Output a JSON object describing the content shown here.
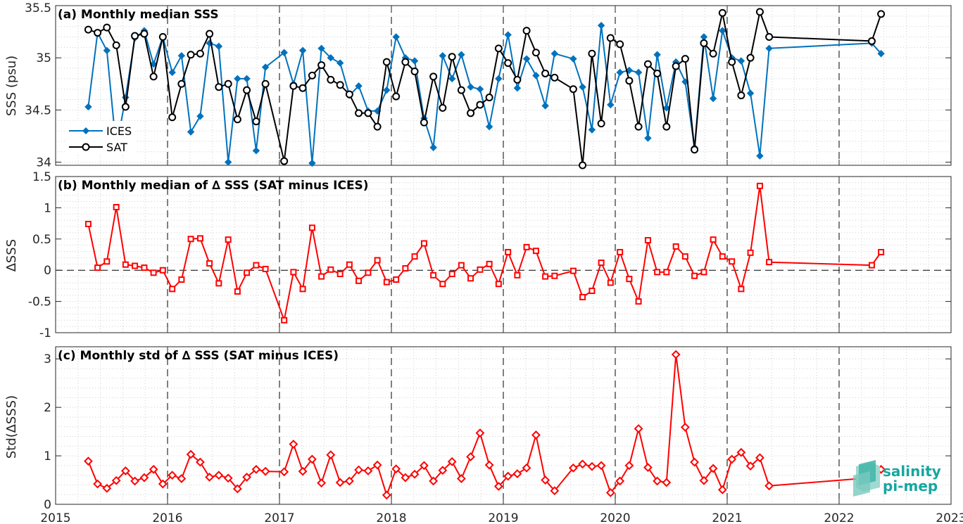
{
  "chart_data": [
    {
      "type": "line",
      "title": "(a) Monthly median SSS",
      "xlabel": "",
      "ylabel": "SSS (psu)",
      "ylim": [
        33.97,
        35.5
      ],
      "yticks": [
        "34",
        "34.5",
        "35",
        "35.5"
      ],
      "xlim": [
        2015,
        2023
      ],
      "xticks": [
        "2015",
        "2016",
        "2017",
        "2018",
        "2019",
        "2020",
        "2021",
        "2022",
        "2023"
      ],
      "grid": "minor dotted",
      "legend_position": "bottom-left",
      "colors": {
        "ices": "#0072BD",
        "sat": "#000000"
      },
      "series": [
        {
          "name": "ICES",
          "marker": "diamond",
          "x": [
            2015.292,
            2015.375,
            2015.458,
            2015.542,
            2015.625,
            2015.708,
            2015.792,
            2015.875,
            2015.958,
            2016.042,
            2016.125,
            2016.208,
            2016.292,
            2016.375,
            2016.458,
            2016.542,
            2016.625,
            2016.708,
            2016.792,
            2016.875,
            2017.042,
            2017.125,
            2017.208,
            2017.292,
            2017.375,
            2017.458,
            2017.542,
            2017.625,
            2017.708,
            2017.792,
            2017.875,
            2017.958,
            2018.042,
            2018.125,
            2018.208,
            2018.292,
            2018.375,
            2018.458,
            2018.542,
            2018.625,
            2018.708,
            2018.792,
            2018.875,
            2018.958,
            2019.042,
            2019.125,
            2019.208,
            2019.292,
            2019.375,
            2019.458,
            2019.625,
            2019.708,
            2019.792,
            2019.875,
            2019.958,
            2020.042,
            2020.125,
            2020.208,
            2020.292,
            2020.375,
            2020.458,
            2020.542,
            2020.625,
            2020.708,
            2020.792,
            2020.875,
            2020.958,
            2021.042,
            2021.125,
            2021.208,
            2021.292,
            2021.375,
            2022.292,
            2022.375
          ],
          "values": [
            34.53,
            35.24,
            35.07,
            34.13,
            34.62,
            35.19,
            35.26,
            34.94,
            35.2,
            34.86,
            35.02,
            34.29,
            34.44,
            35.14,
            35.11,
            34.0,
            34.8,
            34.8,
            34.11,
            34.91,
            35.05,
            34.75,
            35.07,
            33.99,
            35.09,
            35.0,
            34.95,
            34.64,
            34.73,
            34.49,
            34.49,
            34.69,
            35.2,
            35.0,
            34.97,
            34.42,
            34.14,
            35.02,
            34.8,
            35.03,
            34.72,
            34.7,
            34.34,
            34.8,
            35.22,
            34.71,
            34.99,
            34.83,
            34.54,
            35.04,
            34.99,
            34.72,
            34.31,
            35.31,
            34.55,
            34.86,
            34.88,
            34.86,
            34.23,
            35.03,
            34.52,
            34.96,
            34.77,
            34.14,
            35.2,
            34.61,
            35.26,
            35.0,
            34.97,
            34.66,
            34.06,
            35.09,
            35.14,
            35.04
          ]
        },
        {
          "name": "SAT",
          "marker": "circle",
          "x": [
            2015.292,
            2015.375,
            2015.458,
            2015.542,
            2015.625,
            2015.708,
            2015.792,
            2015.875,
            2015.958,
            2016.042,
            2016.125,
            2016.208,
            2016.292,
            2016.375,
            2016.458,
            2016.542,
            2016.625,
            2016.708,
            2016.792,
            2016.875,
            2017.042,
            2017.125,
            2017.208,
            2017.292,
            2017.375,
            2017.458,
            2017.542,
            2017.625,
            2017.708,
            2017.792,
            2017.875,
            2017.958,
            2018.042,
            2018.125,
            2018.208,
            2018.292,
            2018.375,
            2018.458,
            2018.542,
            2018.625,
            2018.708,
            2018.792,
            2018.875,
            2018.958,
            2019.042,
            2019.125,
            2019.208,
            2019.292,
            2019.375,
            2019.458,
            2019.625,
            2019.708,
            2019.792,
            2019.875,
            2019.958,
            2020.042,
            2020.125,
            2020.208,
            2020.292,
            2020.375,
            2020.458,
            2020.542,
            2020.625,
            2020.708,
            2020.792,
            2020.875,
            2020.958,
            2021.042,
            2021.125,
            2021.208,
            2021.292,
            2021.375,
            2022.292,
            2022.375
          ],
          "values": [
            35.27,
            35.24,
            35.29,
            35.12,
            34.53,
            35.21,
            35.23,
            34.82,
            35.2,
            34.43,
            34.75,
            35.03,
            35.04,
            35.23,
            34.72,
            34.75,
            34.41,
            34.69,
            34.39,
            34.75,
            34.01,
            34.73,
            34.71,
            34.83,
            34.93,
            34.79,
            34.74,
            34.65,
            34.47,
            34.47,
            34.34,
            34.96,
            34.63,
            34.96,
            34.87,
            34.38,
            34.82,
            34.52,
            35.01,
            34.69,
            34.47,
            34.55,
            34.62,
            35.09,
            34.95,
            34.79,
            35.26,
            35.05,
            34.85,
            34.81,
            34.7,
            33.97,
            35.04,
            34.37,
            35.19,
            35.13,
            34.78,
            34.34,
            34.94,
            34.85,
            34.34,
            34.92,
            34.99,
            34.12,
            35.14,
            35.04,
            35.43,
            34.96,
            34.64,
            35.0,
            35.44,
            35.2,
            35.16,
            35.42
          ]
        }
      ]
    },
    {
      "type": "line",
      "title": "(b) Monthly median of ∆ SSS (SAT minus ICES)",
      "xlabel": "",
      "ylabel": "∆SSS",
      "ylim": [
        -1,
        1.5
      ],
      "yticks": [
        "-1",
        "-0.5",
        "0",
        "0.5",
        "1",
        "1.5"
      ],
      "xlim": [
        2015,
        2023
      ],
      "reference_line": 0,
      "grid": "minor dotted",
      "colors": {
        "line": "#FF0000"
      },
      "series": [
        {
          "marker": "square",
          "x": [
            2015.292,
            2015.375,
            2015.458,
            2015.542,
            2015.625,
            2015.708,
            2015.792,
            2015.875,
            2015.958,
            2016.042,
            2016.125,
            2016.208,
            2016.292,
            2016.375,
            2016.458,
            2016.542,
            2016.625,
            2016.708,
            2016.792,
            2016.875,
            2017.042,
            2017.125,
            2017.208,
            2017.292,
            2017.375,
            2017.458,
            2017.542,
            2017.625,
            2017.708,
            2017.792,
            2017.875,
            2017.958,
            2018.042,
            2018.125,
            2018.208,
            2018.292,
            2018.375,
            2018.458,
            2018.542,
            2018.625,
            2018.708,
            2018.792,
            2018.875,
            2018.958,
            2019.042,
            2019.125,
            2019.208,
            2019.292,
            2019.375,
            2019.458,
            2019.625,
            2019.708,
            2019.792,
            2019.875,
            2019.958,
            2020.042,
            2020.125,
            2020.208,
            2020.292,
            2020.375,
            2020.458,
            2020.542,
            2020.625,
            2020.708,
            2020.792,
            2020.875,
            2020.958,
            2021.042,
            2021.125,
            2021.208,
            2021.292,
            2021.375,
            2022.292,
            2022.375
          ],
          "values": [
            0.74,
            0.04,
            0.14,
            1.01,
            0.09,
            0.07,
            0.04,
            -0.04,
            0.0,
            -0.3,
            -0.15,
            0.5,
            0.51,
            0.11,
            -0.21,
            0.49,
            -0.34,
            -0.04,
            0.08,
            0.02,
            -0.8,
            -0.03,
            -0.3,
            0.68,
            -0.1,
            0.01,
            -0.06,
            0.09,
            -0.17,
            -0.04,
            0.16,
            -0.19,
            -0.15,
            0.03,
            0.22,
            0.43,
            -0.08,
            -0.22,
            -0.06,
            0.08,
            -0.13,
            0.01,
            0.1,
            -0.22,
            0.29,
            -0.08,
            0.37,
            0.31,
            -0.1,
            -0.09,
            -0.01,
            -0.43,
            -0.33,
            0.12,
            -0.2,
            0.29,
            -0.14,
            -0.5,
            0.48,
            -0.03,
            -0.03,
            0.38,
            0.22,
            -0.09,
            -0.03,
            0.49,
            0.22,
            0.14,
            -0.3,
            0.28,
            1.35,
            0.13,
            0.08,
            0.29
          ]
        }
      ]
    },
    {
      "type": "line",
      "title": "(c) Monthly std of ∆ SSS (SAT minus ICES)",
      "xlabel": "",
      "ylabel": "Std(∆SSS)",
      "ylim": [
        0,
        3.25
      ],
      "yticks": [
        "0",
        "1",
        "2",
        "3"
      ],
      "xlim": [
        2015,
        2023
      ],
      "grid": "minor dotted",
      "colors": {
        "line": "#FF0000"
      },
      "series": [
        {
          "marker": "diamond",
          "x": [
            2015.292,
            2015.375,
            2015.458,
            2015.542,
            2015.625,
            2015.708,
            2015.792,
            2015.875,
            2015.958,
            2016.042,
            2016.125,
            2016.208,
            2016.292,
            2016.375,
            2016.458,
            2016.542,
            2016.625,
            2016.708,
            2016.792,
            2016.875,
            2017.042,
            2017.125,
            2017.208,
            2017.292,
            2017.375,
            2017.458,
            2017.542,
            2017.625,
            2017.708,
            2017.792,
            2017.875,
            2017.958,
            2018.042,
            2018.125,
            2018.208,
            2018.292,
            2018.375,
            2018.458,
            2018.542,
            2018.625,
            2018.708,
            2018.792,
            2018.875,
            2018.958,
            2019.042,
            2019.125,
            2019.208,
            2019.292,
            2019.375,
            2019.458,
            2019.625,
            2019.708,
            2019.792,
            2019.875,
            2019.958,
            2020.042,
            2020.125,
            2020.208,
            2020.292,
            2020.375,
            2020.458,
            2020.542,
            2020.625,
            2020.708,
            2020.792,
            2020.875,
            2020.958,
            2021.042,
            2021.125,
            2021.208,
            2021.292,
            2021.375,
            2022.292,
            2022.375
          ],
          "values": [
            0.89,
            0.42,
            0.33,
            0.49,
            0.69,
            0.48,
            0.55,
            0.72,
            0.42,
            0.6,
            0.53,
            1.03,
            0.87,
            0.56,
            0.6,
            0.54,
            0.32,
            0.56,
            0.72,
            0.68,
            0.67,
            1.24,
            0.68,
            0.93,
            0.44,
            1.02,
            0.45,
            0.48,
            0.71,
            0.69,
            0.81,
            0.19,
            0.73,
            0.55,
            0.62,
            0.8,
            0.48,
            0.7,
            0.88,
            0.53,
            0.98,
            1.47,
            0.81,
            0.37,
            0.58,
            0.63,
            0.75,
            1.43,
            0.5,
            0.28,
            0.75,
            0.83,
            0.78,
            0.8,
            0.24,
            0.48,
            0.8,
            1.56,
            0.76,
            0.48,
            0.45,
            3.09,
            1.59,
            0.87,
            0.49,
            0.74,
            0.3,
            0.93,
            1.07,
            0.79,
            0.96,
            0.38,
            0.55,
            0.72
          ]
        }
      ]
    }
  ],
  "logo": {
    "line1": "salinity",
    "line2": "pi-mep",
    "icon": "salinity-cube-icon",
    "color": "#16A6A0"
  }
}
